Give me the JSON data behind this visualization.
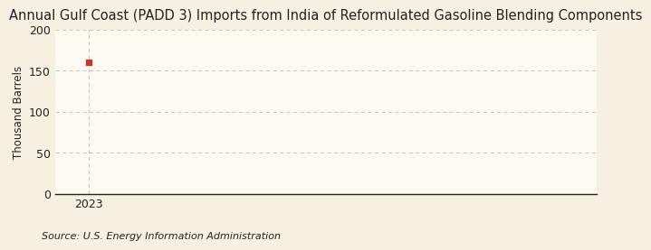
{
  "title": "Annual Gulf Coast (PADD 3) Imports from India of Reformulated Gasoline Blending Components",
  "ylabel": "Thousand Barrels",
  "source_text": "Source: U.S. Energy Information Administration",
  "background_color": "#f5f0e0",
  "plot_background_color": "#fdfaf2",
  "data_x": [
    2023
  ],
  "data_y": [
    160
  ],
  "data_color": "#c0392b",
  "xlim": [
    2022.5,
    2030.5
  ],
  "ylim": [
    0,
    200
  ],
  "yticks": [
    0,
    50,
    100,
    150,
    200
  ],
  "xticks": [
    2023
  ],
  "grid_color": "#bbbbbb",
  "axis_color": "#222222",
  "title_fontsize": 10.5,
  "label_fontsize": 8.5,
  "tick_fontsize": 9,
  "source_fontsize": 8
}
